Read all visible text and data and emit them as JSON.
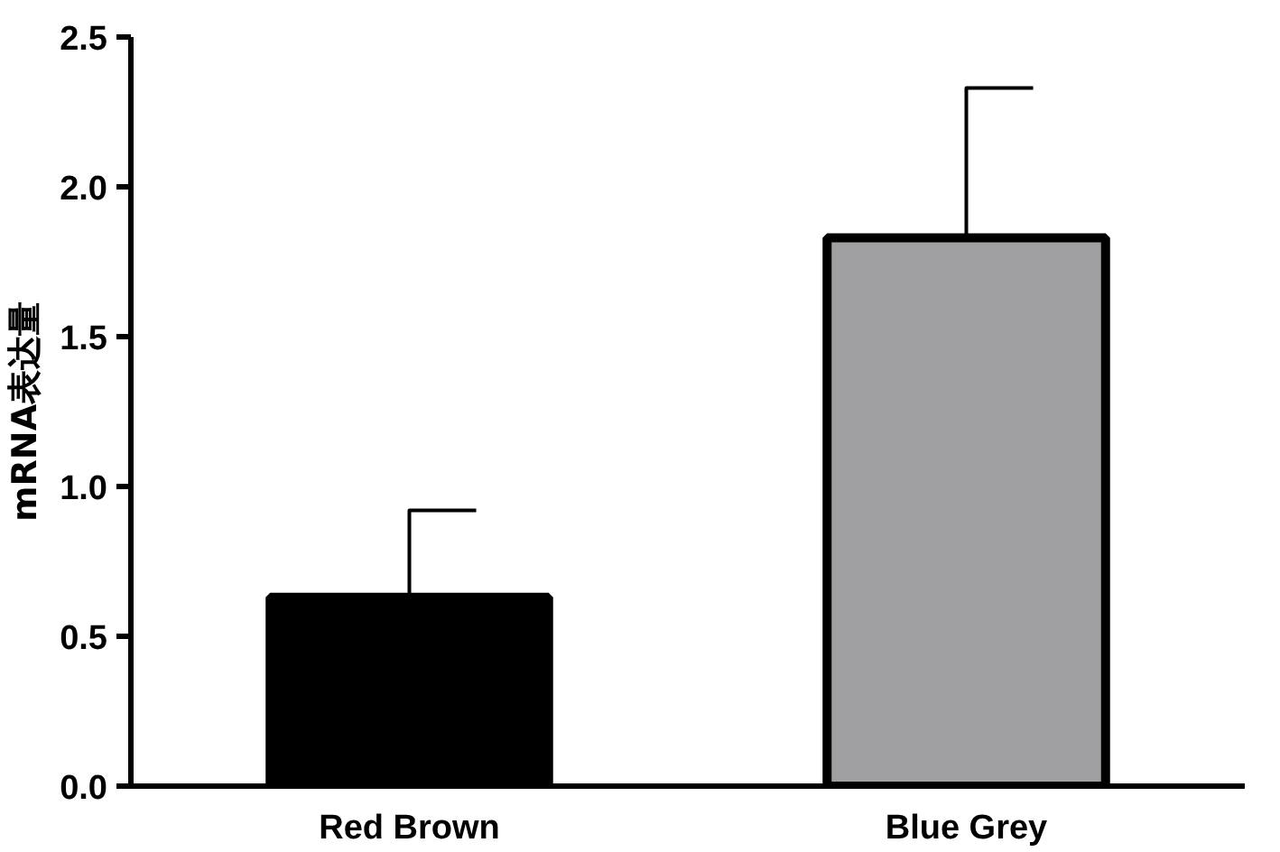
{
  "chart_data": {
    "type": "bar",
    "ylabel": "mRNA表达量",
    "categories": [
      "Red Brown",
      "Blue Grey"
    ],
    "values": [
      0.63,
      1.83
    ],
    "colors": [
      "#000000",
      "#a0a0a2"
    ],
    "errors": [
      0.29,
      0.5
    ],
    "ylim": [
      0,
      2.5
    ],
    "yticks": [
      {
        "value": 0,
        "label": "0.0"
      },
      {
        "value": 0.5,
        "label": "0.5"
      },
      {
        "value": 1,
        "label": "1.0"
      },
      {
        "value": 1.5,
        "label": "1.5"
      },
      {
        "value": 2,
        "label": "2.0"
      },
      {
        "value": 2.5,
        "label": "2.5"
      }
    ],
    "grid": false
  }
}
